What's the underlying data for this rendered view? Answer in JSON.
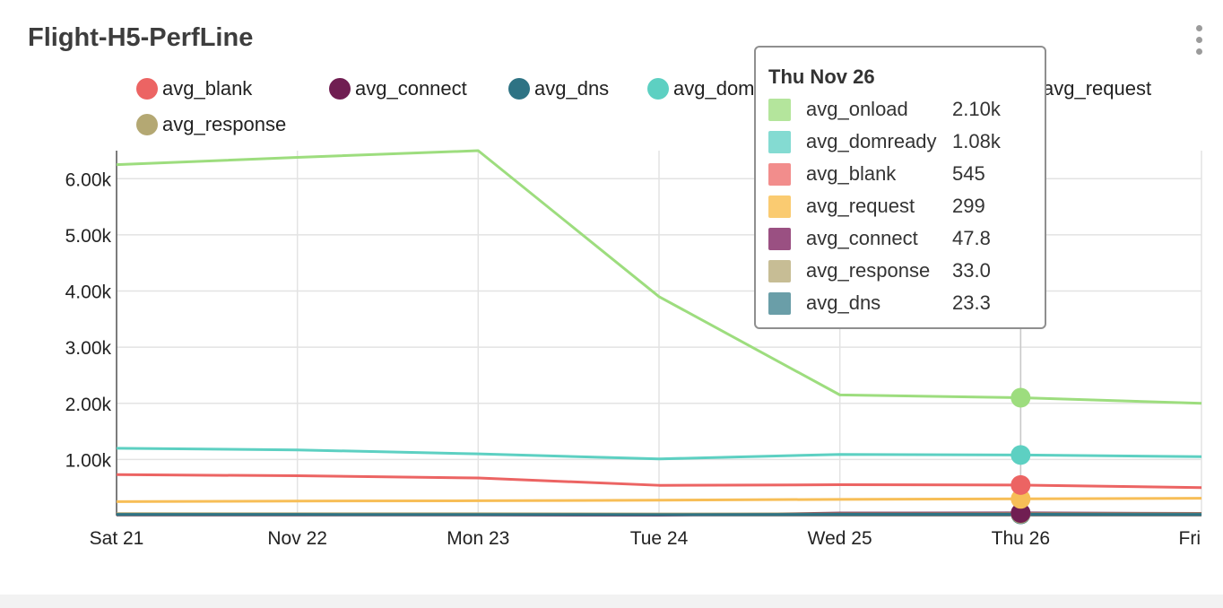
{
  "panel": {
    "title": "Flight-H5-PerfLine"
  },
  "menu": {
    "icon": "kebab-menu-icon"
  },
  "legend": [
    {
      "name": "avg_blank",
      "color": "#ec6463",
      "active": true
    },
    {
      "name": "avg_connect",
      "color": "#701e52",
      "active": true
    },
    {
      "name": "avg_dns",
      "color": "#2e7384",
      "active": true
    },
    {
      "name": "avg_domready",
      "color": "#5dd0c2",
      "active": true
    },
    {
      "name": "avg_onload",
      "color": "#9ddd7e",
      "active": true
    },
    {
      "name": "avg_request",
      "color": "#f7be57",
      "active": true
    },
    {
      "name": "avg_response",
      "color": "#b4a873",
      "active": true
    }
  ],
  "tooltip": {
    "title": "Thu Nov 26",
    "rows": [
      {
        "name": "avg_onload",
        "value": "2.10k",
        "color": "#b4e59c"
      },
      {
        "name": "avg_domready",
        "value": "1.08k",
        "color": "#84dbd2"
      },
      {
        "name": "avg_blank",
        "value": "545",
        "color": "#f28d8c"
      },
      {
        "name": "avg_request",
        "value": "299",
        "color": "#facb71"
      },
      {
        "name": "avg_connect",
        "value": "47.8",
        "color": "#9a5082"
      },
      {
        "name": "avg_response",
        "value": "33.0",
        "color": "#c7bd95"
      },
      {
        "name": "avg_dns",
        "value": "23.3",
        "color": "#6a9ea8"
      }
    ]
  },
  "chart_data": {
    "type": "line",
    "title": "Flight-H5-PerfLine",
    "x": [
      "Sat 21",
      "Nov 22",
      "Mon 23",
      "Tue 24",
      "Wed 25",
      "Thu 26",
      "Fri"
    ],
    "ylim": [
      0,
      6500
    ],
    "yticks": [
      "1.00k",
      "2.00k",
      "3.00k",
      "4.00k",
      "5.00k",
      "6.00k"
    ],
    "ytick_values": [
      1000,
      2000,
      3000,
      4000,
      5000,
      6000
    ],
    "grid": true,
    "legend_position": "top",
    "hover_index": 5,
    "series": [
      {
        "name": "avg_onload",
        "color": "#9ddd7e",
        "values": [
          6250,
          6380,
          6500,
          3900,
          2150,
          2100,
          2000
        ]
      },
      {
        "name": "avg_domready",
        "color": "#5dd0c2",
        "values": [
          1200,
          1170,
          1100,
          1010,
          1090,
          1080,
          1050
        ]
      },
      {
        "name": "avg_blank",
        "color": "#ec6463",
        "values": [
          730,
          710,
          670,
          540,
          550,
          545,
          500
        ]
      },
      {
        "name": "avg_request",
        "color": "#f7be57",
        "values": [
          250,
          260,
          265,
          275,
          290,
          299,
          310
        ]
      },
      {
        "name": "avg_connect",
        "color": "#701e52",
        "values": [
          20,
          18,
          15,
          10,
          45,
          47.8,
          40
        ]
      },
      {
        "name": "avg_response",
        "color": "#b4a873",
        "values": [
          35,
          34,
          33,
          30,
          32,
          33.0,
          34
        ]
      },
      {
        "name": "avg_dns",
        "color": "#2e7384",
        "values": [
          22,
          21,
          20,
          18,
          23,
          23.3,
          22
        ]
      }
    ]
  }
}
